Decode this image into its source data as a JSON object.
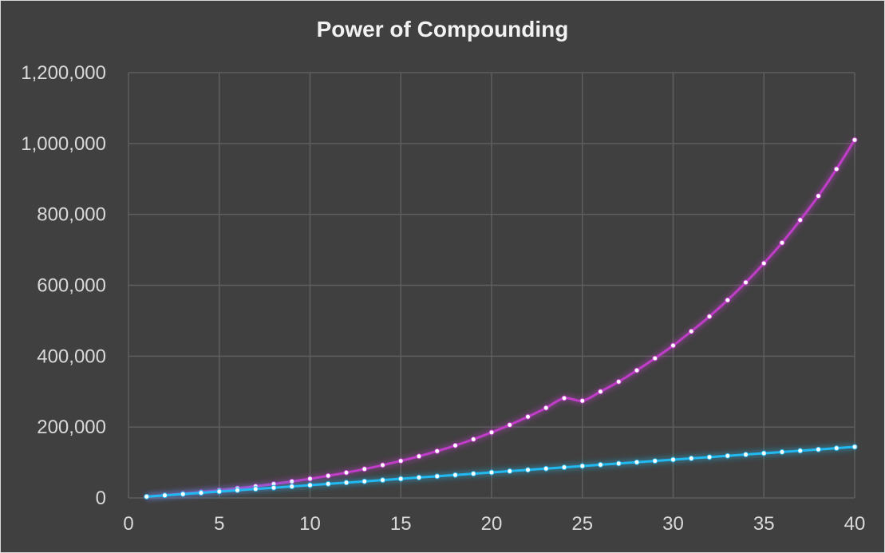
{
  "chart_data": {
    "type": "line",
    "title": "Power of Compounding",
    "xlabel": "",
    "ylabel": "",
    "xlim": [
      0,
      40
    ],
    "ylim": [
      0,
      1200000
    ],
    "x_ticks": [
      "0",
      "5",
      "10",
      "15",
      "20",
      "25",
      "30",
      "35",
      "40"
    ],
    "y_ticks": [
      "0",
      "200,000",
      "400,000",
      "600,000",
      "800,000",
      "1,000,000",
      "1,200,000"
    ],
    "grid": true,
    "legend": "none",
    "series": [
      {
        "color": "#c03cc8",
        "x": [
          1,
          2,
          3,
          4,
          5,
          6,
          7,
          8,
          9,
          10,
          11,
          12,
          13,
          14,
          15,
          16,
          17,
          18,
          19,
          20,
          21,
          22,
          23,
          24,
          25,
          26,
          27,
          28,
          29,
          30,
          31,
          32,
          33,
          34,
          35,
          36,
          37,
          38,
          39,
          40
        ],
        "values": [
          3600,
          7600,
          11800,
          16500,
          21500,
          27000,
          33000,
          39500,
          46500,
          54000,
          62500,
          71500,
          81500,
          92500,
          104500,
          117500,
          132000,
          148000,
          165500,
          185000,
          206000,
          229000,
          254000,
          281500,
          274000,
          300000,
          328000,
          360000,
          394000,
          430000,
          470000,
          512000,
          558000,
          608000,
          662000,
          720000,
          784000,
          852000,
          928000,
          1010000
        ]
      },
      {
        "color": "#22b8f0",
        "x": [
          1,
          2,
          3,
          4,
          5,
          6,
          7,
          8,
          9,
          10,
          11,
          12,
          13,
          14,
          15,
          16,
          17,
          18,
          19,
          20,
          21,
          22,
          23,
          24,
          25,
          26,
          27,
          28,
          29,
          30,
          31,
          32,
          33,
          34,
          35,
          36,
          37,
          38,
          39,
          40
        ],
        "values": [
          3600,
          7200,
          10800,
          14400,
          18000,
          21600,
          25200,
          28800,
          32400,
          36000,
          39600,
          43200,
          46800,
          50400,
          54000,
          57600,
          61200,
          64800,
          68400,
          72000,
          75600,
          79200,
          82800,
          86400,
          90000,
          93600,
          97200,
          100800,
          104400,
          108000,
          111600,
          115200,
          118800,
          122400,
          126000,
          129600,
          133200,
          136800,
          140400,
          144000
        ]
      }
    ]
  }
}
